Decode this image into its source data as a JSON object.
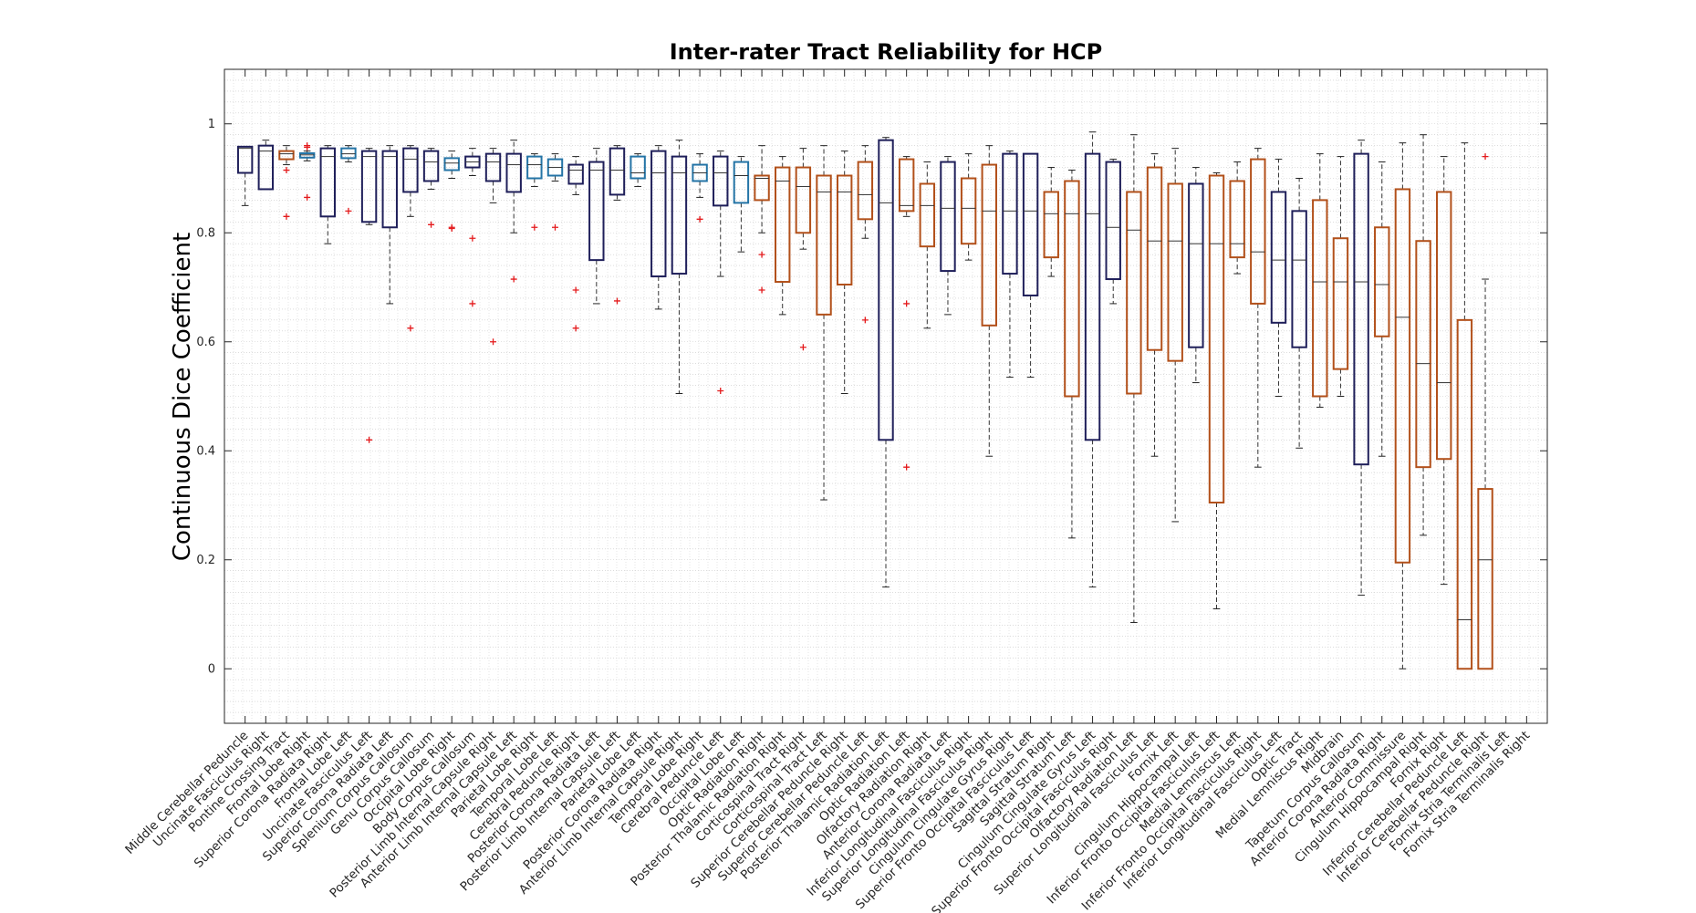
{
  "chart_data": {
    "type": "box",
    "title": "Inter-rater Tract Reliability for HCP",
    "xlabel": "",
    "ylabel": "Continuous Dice Coefficient",
    "ylim": [
      -0.1,
      1.1
    ],
    "yticks": [
      0,
      0.2,
      0.4,
      0.6,
      0.8,
      1
    ],
    "ytick_labels": [
      "0",
      "0.2",
      "0.4",
      "0.6",
      "0.8",
      "1"
    ],
    "grid": "minor dotted",
    "colors": {
      "navy": "#1f1f5a",
      "orange": "#b2501a",
      "blue": "#2474a6",
      "outlier": "#e41a1c"
    },
    "boxes": [
      {
        "label": "Middle Cerebellar Peduncle",
        "color": "navy",
        "q1": 0.91,
        "median": 0.955,
        "q3": 0.958,
        "wlo": 0.85,
        "whi": 0.958,
        "outliers": []
      },
      {
        "label": "Uncinate Fasciculus Right",
        "color": "navy",
        "q1": 0.88,
        "median": 0.95,
        "q3": 0.96,
        "wlo": 0.88,
        "whi": 0.97,
        "outliers": []
      },
      {
        "label": "Pontine Crossing Tract",
        "color": "orange",
        "q1": 0.935,
        "median": 0.945,
        "q3": 0.95,
        "wlo": 0.925,
        "whi": 0.96,
        "outliers": [
          0.915,
          0.83
        ]
      },
      {
        "label": "Frontal Lobe Right",
        "color": "blue",
        "q1": 0.938,
        "median": 0.943,
        "q3": 0.946,
        "wlo": 0.932,
        "whi": 0.95,
        "outliers": [
          0.957,
          0.96,
          0.865
        ]
      },
      {
        "label": "Superior Corona Radiata Right",
        "color": "navy",
        "q1": 0.83,
        "median": 0.94,
        "q3": 0.955,
        "wlo": 0.78,
        "whi": 0.96,
        "outliers": []
      },
      {
        "label": "Frontal Lobe Left",
        "color": "blue",
        "q1": 0.937,
        "median": 0.945,
        "q3": 0.955,
        "wlo": 0.93,
        "whi": 0.96,
        "outliers": [
          0.84
        ]
      },
      {
        "label": "Uncinate Fasciculus Left",
        "color": "navy",
        "q1": 0.82,
        "median": 0.94,
        "q3": 0.95,
        "wlo": 0.815,
        "whi": 0.955,
        "outliers": [
          0.42
        ]
      },
      {
        "label": "Superior Corona Radiata Left",
        "color": "navy",
        "q1": 0.81,
        "median": 0.94,
        "q3": 0.95,
        "wlo": 0.67,
        "whi": 0.96,
        "outliers": []
      },
      {
        "label": "Splenium Corpus Callosum",
        "color": "navy",
        "q1": 0.875,
        "median": 0.935,
        "q3": 0.955,
        "wlo": 0.83,
        "whi": 0.96,
        "outliers": [
          0.625
        ]
      },
      {
        "label": "Genu Corpus Callosum",
        "color": "navy",
        "q1": 0.895,
        "median": 0.93,
        "q3": 0.95,
        "wlo": 0.88,
        "whi": 0.955,
        "outliers": [
          0.815
        ]
      },
      {
        "label": "Occipital Lobe Right",
        "color": "blue",
        "q1": 0.915,
        "median": 0.928,
        "q3": 0.937,
        "wlo": 0.9,
        "whi": 0.95,
        "outliers": [
          0.81,
          0.808
        ]
      },
      {
        "label": "Body Corpus Callosum",
        "color": "navy",
        "q1": 0.92,
        "median": 0.93,
        "q3": 0.94,
        "wlo": 0.905,
        "whi": 0.955,
        "outliers": [
          0.79,
          0.67
        ]
      },
      {
        "label": "Posterior Limb Internal Capsule Right",
        "color": "navy",
        "q1": 0.895,
        "median": 0.93,
        "q3": 0.945,
        "wlo": 0.855,
        "whi": 0.955,
        "outliers": [
          0.6
        ]
      },
      {
        "label": "Anterior Limb Internal Capsule Left",
        "color": "navy",
        "q1": 0.875,
        "median": 0.925,
        "q3": 0.945,
        "wlo": 0.8,
        "whi": 0.97,
        "outliers": [
          0.715
        ]
      },
      {
        "label": "Parietal Lobe Right",
        "color": "blue",
        "q1": 0.9,
        "median": 0.925,
        "q3": 0.94,
        "wlo": 0.885,
        "whi": 0.945,
        "outliers": [
          0.81
        ]
      },
      {
        "label": "Temporal Lobe Left",
        "color": "blue",
        "q1": 0.905,
        "median": 0.92,
        "q3": 0.935,
        "wlo": 0.895,
        "whi": 0.945,
        "outliers": [
          0.81
        ]
      },
      {
        "label": "Cerebral Peduncle Right",
        "color": "navy",
        "q1": 0.89,
        "median": 0.915,
        "q3": 0.925,
        "wlo": 0.87,
        "whi": 0.94,
        "outliers": [
          0.695,
          0.625
        ]
      },
      {
        "label": "Posterior Corona Radiata Left",
        "color": "navy",
        "q1": 0.75,
        "median": 0.915,
        "q3": 0.93,
        "wlo": 0.67,
        "whi": 0.955,
        "outliers": []
      },
      {
        "label": "Posterior Limb Internal Capsule Left",
        "color": "navy",
        "q1": 0.87,
        "median": 0.915,
        "q3": 0.955,
        "wlo": 0.86,
        "whi": 0.96,
        "outliers": [
          0.675
        ]
      },
      {
        "label": "Parietal Lobe Left",
        "color": "blue",
        "q1": 0.9,
        "median": 0.91,
        "q3": 0.94,
        "wlo": 0.885,
        "whi": 0.945,
        "outliers": []
      },
      {
        "label": "Posterior Corona Radiata Right",
        "color": "navy",
        "q1": 0.72,
        "median": 0.91,
        "q3": 0.95,
        "wlo": 0.66,
        "whi": 0.96,
        "outliers": []
      },
      {
        "label": "Anterior Limb Internal Capsule Right",
        "color": "navy",
        "q1": 0.725,
        "median": 0.91,
        "q3": 0.94,
        "wlo": 0.505,
        "whi": 0.97,
        "outliers": []
      },
      {
        "label": "Temporal Lobe Right",
        "color": "blue",
        "q1": 0.895,
        "median": 0.91,
        "q3": 0.925,
        "wlo": 0.865,
        "whi": 0.945,
        "outliers": [
          0.825
        ]
      },
      {
        "label": "Cerebral Peduncle Left",
        "color": "navy",
        "q1": 0.85,
        "median": 0.91,
        "q3": 0.94,
        "wlo": 0.72,
        "whi": 0.95,
        "outliers": [
          0.51
        ]
      },
      {
        "label": "Occipital Lobe Left",
        "color": "blue",
        "q1": 0.855,
        "median": 0.905,
        "q3": 0.93,
        "wlo": 0.765,
        "whi": 0.94,
        "outliers": []
      },
      {
        "label": "Optic Radiation Right",
        "color": "orange",
        "q1": 0.86,
        "median": 0.9,
        "q3": 0.905,
        "wlo": 0.8,
        "whi": 0.96,
        "outliers": [
          0.76,
          0.695
        ]
      },
      {
        "label": "Posterior Thalamic Radiation Right",
        "color": "orange",
        "q1": 0.71,
        "median": 0.895,
        "q3": 0.92,
        "wlo": 0.65,
        "whi": 0.94,
        "outliers": []
      },
      {
        "label": "Corticospinal Tract Right",
        "color": "orange",
        "q1": 0.8,
        "median": 0.885,
        "q3": 0.92,
        "wlo": 0.77,
        "whi": 0.955,
        "outliers": [
          0.59
        ]
      },
      {
        "label": "Corticospinal Tract Left",
        "color": "orange",
        "q1": 0.65,
        "median": 0.875,
        "q3": 0.905,
        "wlo": 0.31,
        "whi": 0.96,
        "outliers": []
      },
      {
        "label": "Superior Cerebellar Peduncle Right",
        "color": "orange",
        "q1": 0.705,
        "median": 0.875,
        "q3": 0.905,
        "wlo": 0.505,
        "whi": 0.95,
        "outliers": []
      },
      {
        "label": "Superior Cerebellar Peduncle Left",
        "color": "orange",
        "q1": 0.825,
        "median": 0.87,
        "q3": 0.93,
        "wlo": 0.79,
        "whi": 0.96,
        "outliers": [
          0.64
        ]
      },
      {
        "label": "Posterior Thalamic Radiation Left",
        "color": "navy",
        "q1": 0.42,
        "median": 0.855,
        "q3": 0.97,
        "wlo": 0.15,
        "whi": 0.975,
        "outliers": []
      },
      {
        "label": "Optic Radiation Left",
        "color": "orange",
        "q1": 0.84,
        "median": 0.85,
        "q3": 0.935,
        "wlo": 0.83,
        "whi": 0.94,
        "outliers": [
          0.67,
          0.37
        ]
      },
      {
        "label": "Olfactory Radiation Right",
        "color": "orange",
        "q1": 0.775,
        "median": 0.85,
        "q3": 0.89,
        "wlo": 0.625,
        "whi": 0.93,
        "outliers": []
      },
      {
        "label": "Anterior Corona Radiata Left",
        "color": "navy",
        "q1": 0.73,
        "median": 0.845,
        "q3": 0.93,
        "wlo": 0.65,
        "whi": 0.94,
        "outliers": []
      },
      {
        "label": "Inferior Longitudinal Fasciculus Right",
        "color": "orange",
        "q1": 0.78,
        "median": 0.845,
        "q3": 0.9,
        "wlo": 0.75,
        "whi": 0.945,
        "outliers": []
      },
      {
        "label": "Superior Longitudinal Fasciculus Right",
        "color": "orange",
        "q1": 0.63,
        "median": 0.84,
        "q3": 0.925,
        "wlo": 0.39,
        "whi": 0.96,
        "outliers": []
      },
      {
        "label": "Cingulum Cingulate Gyrus Right",
        "color": "navy",
        "q1": 0.725,
        "median": 0.84,
        "q3": 0.945,
        "wlo": 0.535,
        "whi": 0.95,
        "outliers": []
      },
      {
        "label": "Superior Fronto Occipital Fasciculus Left",
        "color": "navy",
        "q1": 0.685,
        "median": 0.84,
        "q3": 0.945,
        "wlo": 0.535,
        "whi": 0.945,
        "outliers": []
      },
      {
        "label": "Sagittal Stratum Right",
        "color": "orange",
        "q1": 0.755,
        "median": 0.835,
        "q3": 0.875,
        "wlo": 0.72,
        "whi": 0.92,
        "outliers": []
      },
      {
        "label": "Sagittal Stratum Left",
        "color": "orange",
        "q1": 0.5,
        "median": 0.835,
        "q3": 0.895,
        "wlo": 0.24,
        "whi": 0.915,
        "outliers": []
      },
      {
        "label": "Cingulum Cingulate Gyrus Left",
        "color": "navy",
        "q1": 0.42,
        "median": 0.835,
        "q3": 0.945,
        "wlo": 0.15,
        "whi": 0.985,
        "outliers": []
      },
      {
        "label": "Superior Fronto Occipital Fasciculus Right",
        "color": "navy",
        "q1": 0.715,
        "median": 0.81,
        "q3": 0.93,
        "wlo": 0.67,
        "whi": 0.935,
        "outliers": []
      },
      {
        "label": "Olfactory Radiation Left",
        "color": "orange",
        "q1": 0.505,
        "median": 0.805,
        "q3": 0.875,
        "wlo": 0.085,
        "whi": 0.98,
        "outliers": []
      },
      {
        "label": "Superior Longitudinal Fasciculus Left",
        "color": "orange",
        "q1": 0.585,
        "median": 0.785,
        "q3": 0.92,
        "wlo": 0.39,
        "whi": 0.945,
        "outliers": []
      },
      {
        "label": "Fornix Left",
        "color": "orange",
        "q1": 0.565,
        "median": 0.785,
        "q3": 0.89,
        "wlo": 0.27,
        "whi": 0.955,
        "outliers": []
      },
      {
        "label": "Cingulum Hippocampal Left",
        "color": "navy",
        "q1": 0.59,
        "median": 0.78,
        "q3": 0.89,
        "wlo": 0.525,
        "whi": 0.92,
        "outliers": []
      },
      {
        "label": "Inferior Fronto Occipital Fasciculus Left",
        "color": "orange",
        "q1": 0.305,
        "median": 0.78,
        "q3": 0.905,
        "wlo": 0.11,
        "whi": 0.91,
        "outliers": []
      },
      {
        "label": "Medial Lemniscus Left",
        "color": "orange",
        "q1": 0.755,
        "median": 0.78,
        "q3": 0.895,
        "wlo": 0.725,
        "whi": 0.93,
        "outliers": []
      },
      {
        "label": "Inferior Fronto Occipital Fasciculus Right",
        "color": "orange",
        "q1": 0.67,
        "median": 0.765,
        "q3": 0.935,
        "wlo": 0.37,
        "whi": 0.955,
        "outliers": []
      },
      {
        "label": "Inferior Longitudinal Fasciculus Left",
        "color": "navy",
        "q1": 0.635,
        "median": 0.75,
        "q3": 0.875,
        "wlo": 0.5,
        "whi": 0.935,
        "outliers": []
      },
      {
        "label": "Optic Tract",
        "color": "navy",
        "q1": 0.59,
        "median": 0.75,
        "q3": 0.84,
        "wlo": 0.405,
        "whi": 0.9,
        "outliers": []
      },
      {
        "label": "Medial Lemniscus Right",
        "color": "orange",
        "q1": 0.5,
        "median": 0.71,
        "q3": 0.86,
        "wlo": 0.48,
        "whi": 0.945,
        "outliers": []
      },
      {
        "label": "Midbrain",
        "color": "orange",
        "q1": 0.55,
        "median": 0.71,
        "q3": 0.79,
        "wlo": 0.5,
        "whi": 0.94,
        "outliers": []
      },
      {
        "label": "Tapetum Corpus Callosum",
        "color": "navy",
        "q1": 0.375,
        "median": 0.71,
        "q3": 0.945,
        "wlo": 0.135,
        "whi": 0.97,
        "outliers": []
      },
      {
        "label": "Anterior Corona Radiata Right",
        "color": "orange",
        "q1": 0.61,
        "median": 0.705,
        "q3": 0.81,
        "wlo": 0.39,
        "whi": 0.93,
        "outliers": []
      },
      {
        "label": "Anterior Commissure",
        "color": "orange",
        "q1": 0.195,
        "median": 0.645,
        "q3": 0.88,
        "wlo": 0.0,
        "whi": 0.965,
        "outliers": []
      },
      {
        "label": "Cingulum Hippocampal Right",
        "color": "orange",
        "q1": 0.37,
        "median": 0.56,
        "q3": 0.785,
        "wlo": 0.245,
        "whi": 0.98,
        "outliers": []
      },
      {
        "label": "Fornix Right",
        "color": "orange",
        "q1": 0.385,
        "median": 0.525,
        "q3": 0.875,
        "wlo": 0.155,
        "whi": 0.94,
        "outliers": []
      },
      {
        "label": "Inferior Cerebellar Peduncle Left",
        "color": "orange",
        "q1": 0.0,
        "median": 0.09,
        "q3": 0.64,
        "wlo": 0.0,
        "whi": 0.965,
        "outliers": []
      },
      {
        "label": "Inferior Cerebellar Peduncle Right",
        "color": "orange",
        "q1": 0.0,
        "median": 0.2,
        "q3": 0.33,
        "wlo": 0.0,
        "whi": 0.715,
        "outliers": [
          0.94
        ]
      },
      {
        "label": "Fornix Stria Terminalis Left",
        "color": null
      },
      {
        "label": "Fornix Stria Terminalis Right",
        "color": null
      }
    ]
  }
}
